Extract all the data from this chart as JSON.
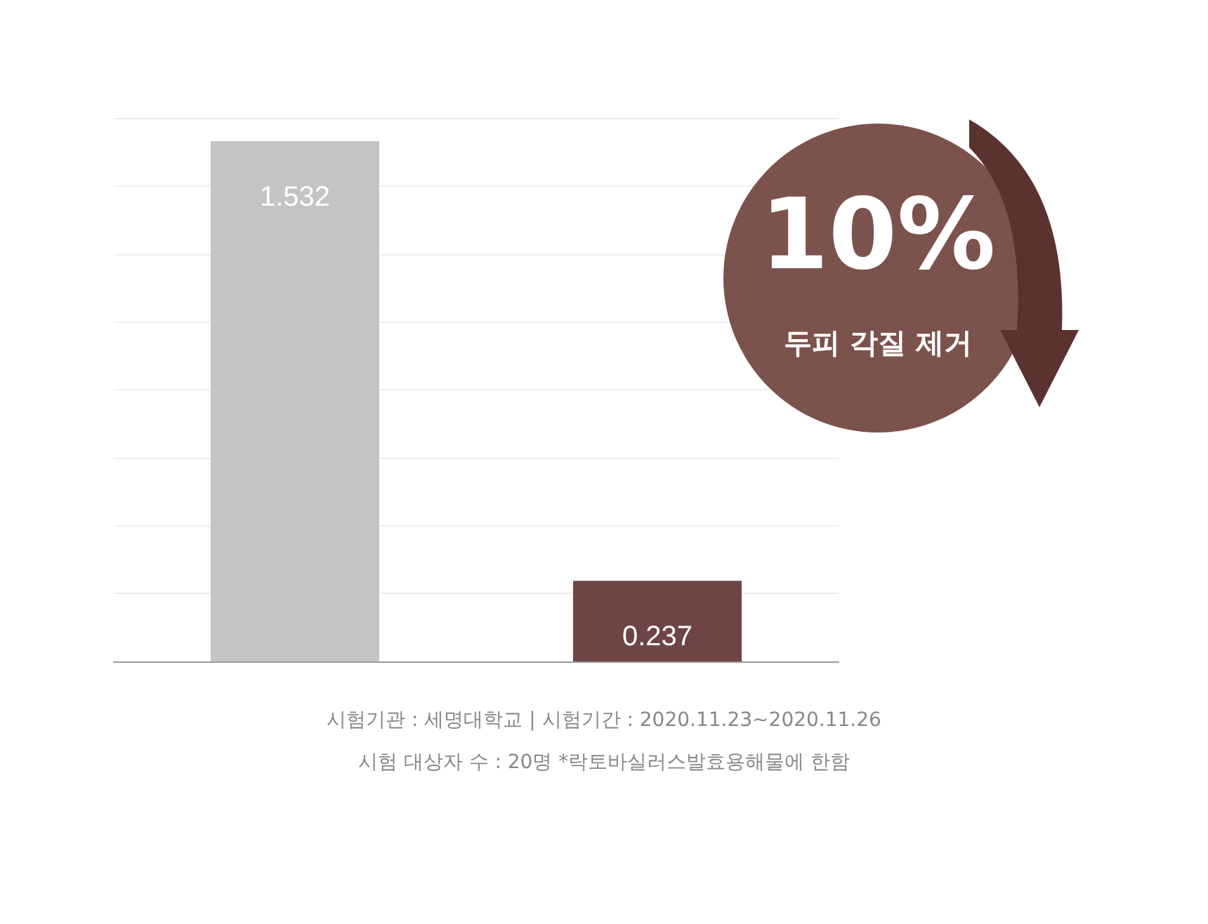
{
  "chart_data": {
    "type": "bar",
    "categories": [
      null,
      null
    ],
    "series": [
      {
        "colors": [
          "#c4c4c4",
          "#6e4444"
        ],
        "values": [
          1.532,
          0.237
        ]
      }
    ],
    "data_labels": true,
    "ylim": [
      0,
      1.6
    ],
    "yticks": [
      {
        "value": 0,
        "label": null
      },
      {
        "value": 0.2,
        "label": null
      },
      {
        "value": 0.4,
        "label": null
      },
      {
        "value": 0.6,
        "label": null
      },
      {
        "value": 0.8,
        "label": null
      },
      {
        "value": 1,
        "label": null
      },
      {
        "value": 1.2,
        "label": null
      },
      {
        "value": 1.4,
        "label": null
      },
      {
        "value": 1.6,
        "label": null
      }
    ],
    "grid": "y",
    "annotations": [
      "10%",
      "두피 각질 제거",
      "시험기관 : 세명대학교  |  시험기간 : 2020.11.23~2020.11.26",
      "시험 대상자 수 : 20명 *락토바실러스발효용해물에 한함"
    ]
  }
}
